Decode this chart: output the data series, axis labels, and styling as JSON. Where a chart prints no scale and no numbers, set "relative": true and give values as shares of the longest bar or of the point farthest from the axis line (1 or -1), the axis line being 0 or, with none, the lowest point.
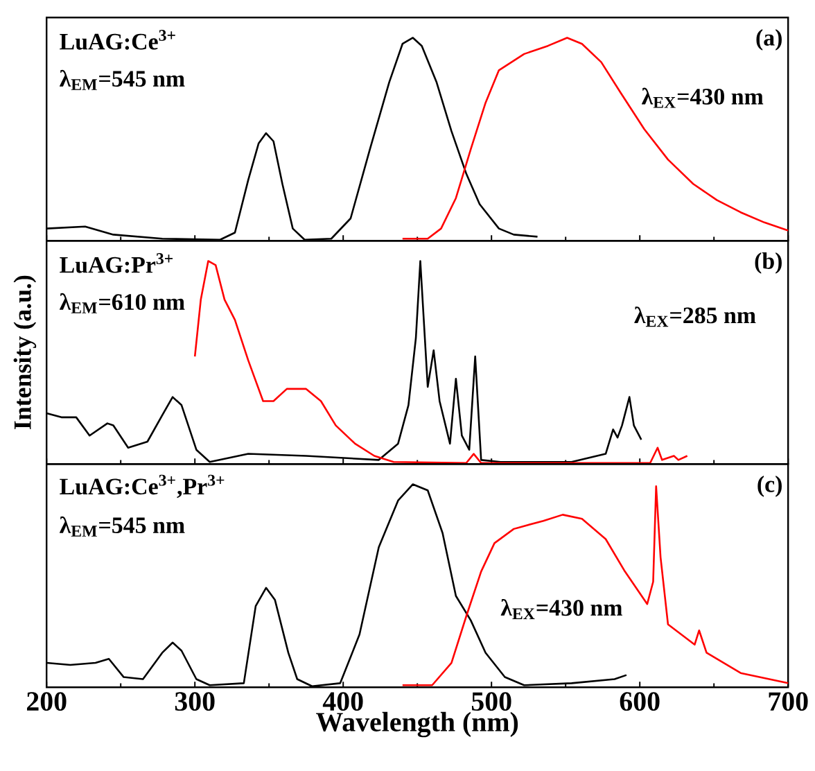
{
  "chart_data": [
    {
      "type": "line",
      "relative": true,
      "xlim": [
        200,
        700
      ],
      "xticks": [
        200,
        300,
        400,
        500,
        600,
        700
      ],
      "tick_labels": false,
      "annotations": [
        "LuAG:Ce$^{3+}$",
        "λ$_{EM}$=545 nm",
        "(a)",
        "λ$_{EX}$=430 nm"
      ],
      "series": [
        {
          "color": "#000000",
          "x": [
            200,
            226,
            245,
            278,
            317,
            327,
            336,
            343,
            348,
            353,
            359,
            366,
            374,
            392,
            405,
            418,
            431,
            440,
            447,
            453,
            463,
            473,
            483,
            492,
            505,
            515,
            531
          ],
          "values": [
            0.06,
            0.07,
            0.03,
            0.01,
            0.005,
            0.04,
            0.3,
            0.48,
            0.53,
            0.49,
            0.28,
            0.06,
            0.005,
            0.01,
            0.11,
            0.45,
            0.78,
            0.97,
            1.0,
            0.96,
            0.78,
            0.54,
            0.33,
            0.18,
            0.06,
            0.03,
            0.02
          ]
        },
        {
          "color": "#ff0000",
          "x": [
            440,
            457,
            466,
            476,
            486,
            496,
            505,
            522,
            538,
            551,
            561,
            574,
            587,
            603,
            619,
            636,
            652,
            668,
            684,
            700
          ],
          "values": [
            0.01,
            0.01,
            0.06,
            0.21,
            0.45,
            0.68,
            0.84,
            0.92,
            0.96,
            1.0,
            0.97,
            0.88,
            0.73,
            0.55,
            0.4,
            0.28,
            0.2,
            0.14,
            0.09,
            0.05
          ]
        }
      ]
    },
    {
      "type": "line",
      "relative": true,
      "xlim": [
        200,
        700
      ],
      "xticks": [
        200,
        300,
        400,
        500,
        600,
        700
      ],
      "tick_labels": false,
      "ylabel": "Intensity (a.u.)",
      "annotations": [
        "LuAG:Pr$^{3+}$",
        "λ$_{EM}$=610 nm",
        "(b)",
        "λ$_{EX}$=285 nm"
      ],
      "series": [
        {
          "color": "#000000",
          "x": [
            200,
            210,
            220,
            229,
            241,
            245,
            255,
            268,
            278,
            285,
            291,
            301,
            310,
            336,
            375,
            424,
            437,
            444,
            449,
            452,
            457,
            461,
            465,
            472,
            476,
            480,
            485,
            489,
            493,
            506,
            554,
            577,
            582,
            585,
            588,
            593,
            596,
            601
          ],
          "values": [
            0.25,
            0.23,
            0.23,
            0.14,
            0.2,
            0.19,
            0.08,
            0.11,
            0.24,
            0.33,
            0.29,
            0.07,
            0.01,
            0.05,
            0.04,
            0.02,
            0.1,
            0.29,
            0.62,
            1.0,
            0.38,
            0.56,
            0.31,
            0.1,
            0.42,
            0.14,
            0.07,
            0.53,
            0.02,
            0.01,
            0.01,
            0.05,
            0.17,
            0.13,
            0.19,
            0.33,
            0.19,
            0.12
          ]
        },
        {
          "color": "#ff0000",
          "x": [
            300,
            304,
            309,
            314,
            320,
            327,
            336,
            346,
            353,
            362,
            375,
            385,
            395,
            408,
            421,
            434,
            483,
            488,
            493,
            607,
            612,
            615,
            623,
            626,
            632
          ],
          "values": [
            0.53,
            0.81,
            1.0,
            0.98,
            0.81,
            0.71,
            0.51,
            0.31,
            0.31,
            0.37,
            0.37,
            0.31,
            0.19,
            0.1,
            0.04,
            0.01,
            0.005,
            0.05,
            0.005,
            0.005,
            0.08,
            0.02,
            0.04,
            0.02,
            0.04
          ]
        }
      ]
    },
    {
      "type": "line",
      "relative": true,
      "xlim": [
        200,
        700
      ],
      "xticks": [
        200,
        300,
        400,
        500,
        600,
        700
      ],
      "tick_labels": "x",
      "xlabel": "Wavelength (nm)",
      "annotations": [
        "LuAG:Ce$^{3+}$,Pr$^{3+}$",
        "λ$_{EM}$=545 nm",
        "(c)",
        "λ$_{EX}$=430 nm"
      ],
      "series": [
        {
          "color": "#000000",
          "x": [
            200,
            216,
            233,
            242,
            252,
            265,
            278,
            285,
            291,
            301,
            310,
            333,
            341,
            348,
            354,
            363,
            369,
            379,
            398,
            411,
            424,
            437,
            447,
            457,
            467,
            476,
            486,
            496,
            509,
            522,
            554,
            583,
            591
          ],
          "values": [
            0.12,
            0.11,
            0.12,
            0.14,
            0.05,
            0.04,
            0.17,
            0.22,
            0.18,
            0.04,
            0.01,
            0.02,
            0.4,
            0.49,
            0.43,
            0.17,
            0.04,
            0.005,
            0.02,
            0.26,
            0.69,
            0.92,
            1.0,
            0.97,
            0.76,
            0.45,
            0.33,
            0.17,
            0.05,
            0.01,
            0.02,
            0.04,
            0.06
          ]
        },
        {
          "color": "#ff0000",
          "x": [
            440,
            460,
            473,
            483,
            493,
            502,
            515,
            535,
            548,
            561,
            577,
            590,
            605,
            609,
            611,
            614,
            619,
            637,
            640,
            645,
            668,
            700
          ],
          "values": [
            0.01,
            0.01,
            0.12,
            0.35,
            0.57,
            0.71,
            0.78,
            0.82,
            0.85,
            0.83,
            0.73,
            0.57,
            0.41,
            0.52,
            0.99,
            0.64,
            0.31,
            0.21,
            0.28,
            0.17,
            0.07,
            0.02
          ]
        }
      ]
    }
  ]
}
